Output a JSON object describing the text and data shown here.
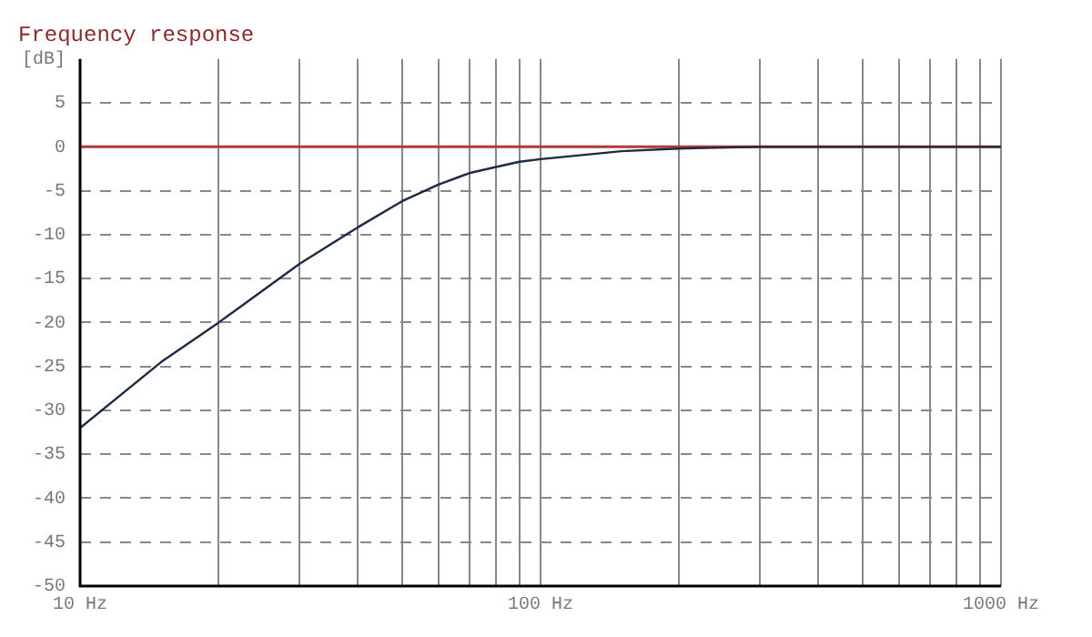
{
  "chart_data": {
    "type": "line",
    "title": "Frequency response",
    "ylabel": "[dB]",
    "x": [
      10,
      15,
      20,
      30,
      40,
      50,
      60,
      70,
      80,
      90,
      100,
      150,
      200,
      300,
      1000
    ],
    "series": [
      {
        "color": "#1c2a44",
        "values": [
          -32,
          -24.5,
          -20,
          -13.3,
          -9.2,
          -6.2,
          -4.3,
          -3.0,
          -2.3,
          -1.7,
          -1.4,
          -0.5,
          -0.2,
          0,
          0
        ]
      }
    ],
    "log": "x",
    "xlim": [
      10,
      1000
    ],
    "ylim": [
      -50,
      10
    ],
    "xticks": [
      {
        "value": 10,
        "label": "10 Hz"
      },
      {
        "value": 20,
        "label": null
      },
      {
        "value": 30,
        "label": null
      },
      {
        "value": 40,
        "label": null
      },
      {
        "value": 50,
        "label": null
      },
      {
        "value": 60,
        "label": null
      },
      {
        "value": 70,
        "label": null
      },
      {
        "value": 80,
        "label": null
      },
      {
        "value": 90,
        "label": null
      },
      {
        "value": 100,
        "label": "100 Hz"
      },
      {
        "value": 200,
        "label": null
      },
      {
        "value": 300,
        "label": null
      },
      {
        "value": 400,
        "label": null
      },
      {
        "value": 500,
        "label": null
      },
      {
        "value": 600,
        "label": null
      },
      {
        "value": 700,
        "label": null
      },
      {
        "value": 800,
        "label": null
      },
      {
        "value": 900,
        "label": null
      },
      {
        "value": 1000,
        "label": "1000 Hz"
      }
    ],
    "yticks": [
      -50,
      -45,
      -40,
      -35,
      -30,
      -25,
      -20,
      -15,
      -10,
      -5,
      0,
      5
    ],
    "ref_lines": [
      {
        "axis": "y",
        "value": 0,
        "color": "#b03a3a"
      }
    ],
    "grid": true,
    "legend": false,
    "marker": "none",
    "line_style": "solid"
  }
}
